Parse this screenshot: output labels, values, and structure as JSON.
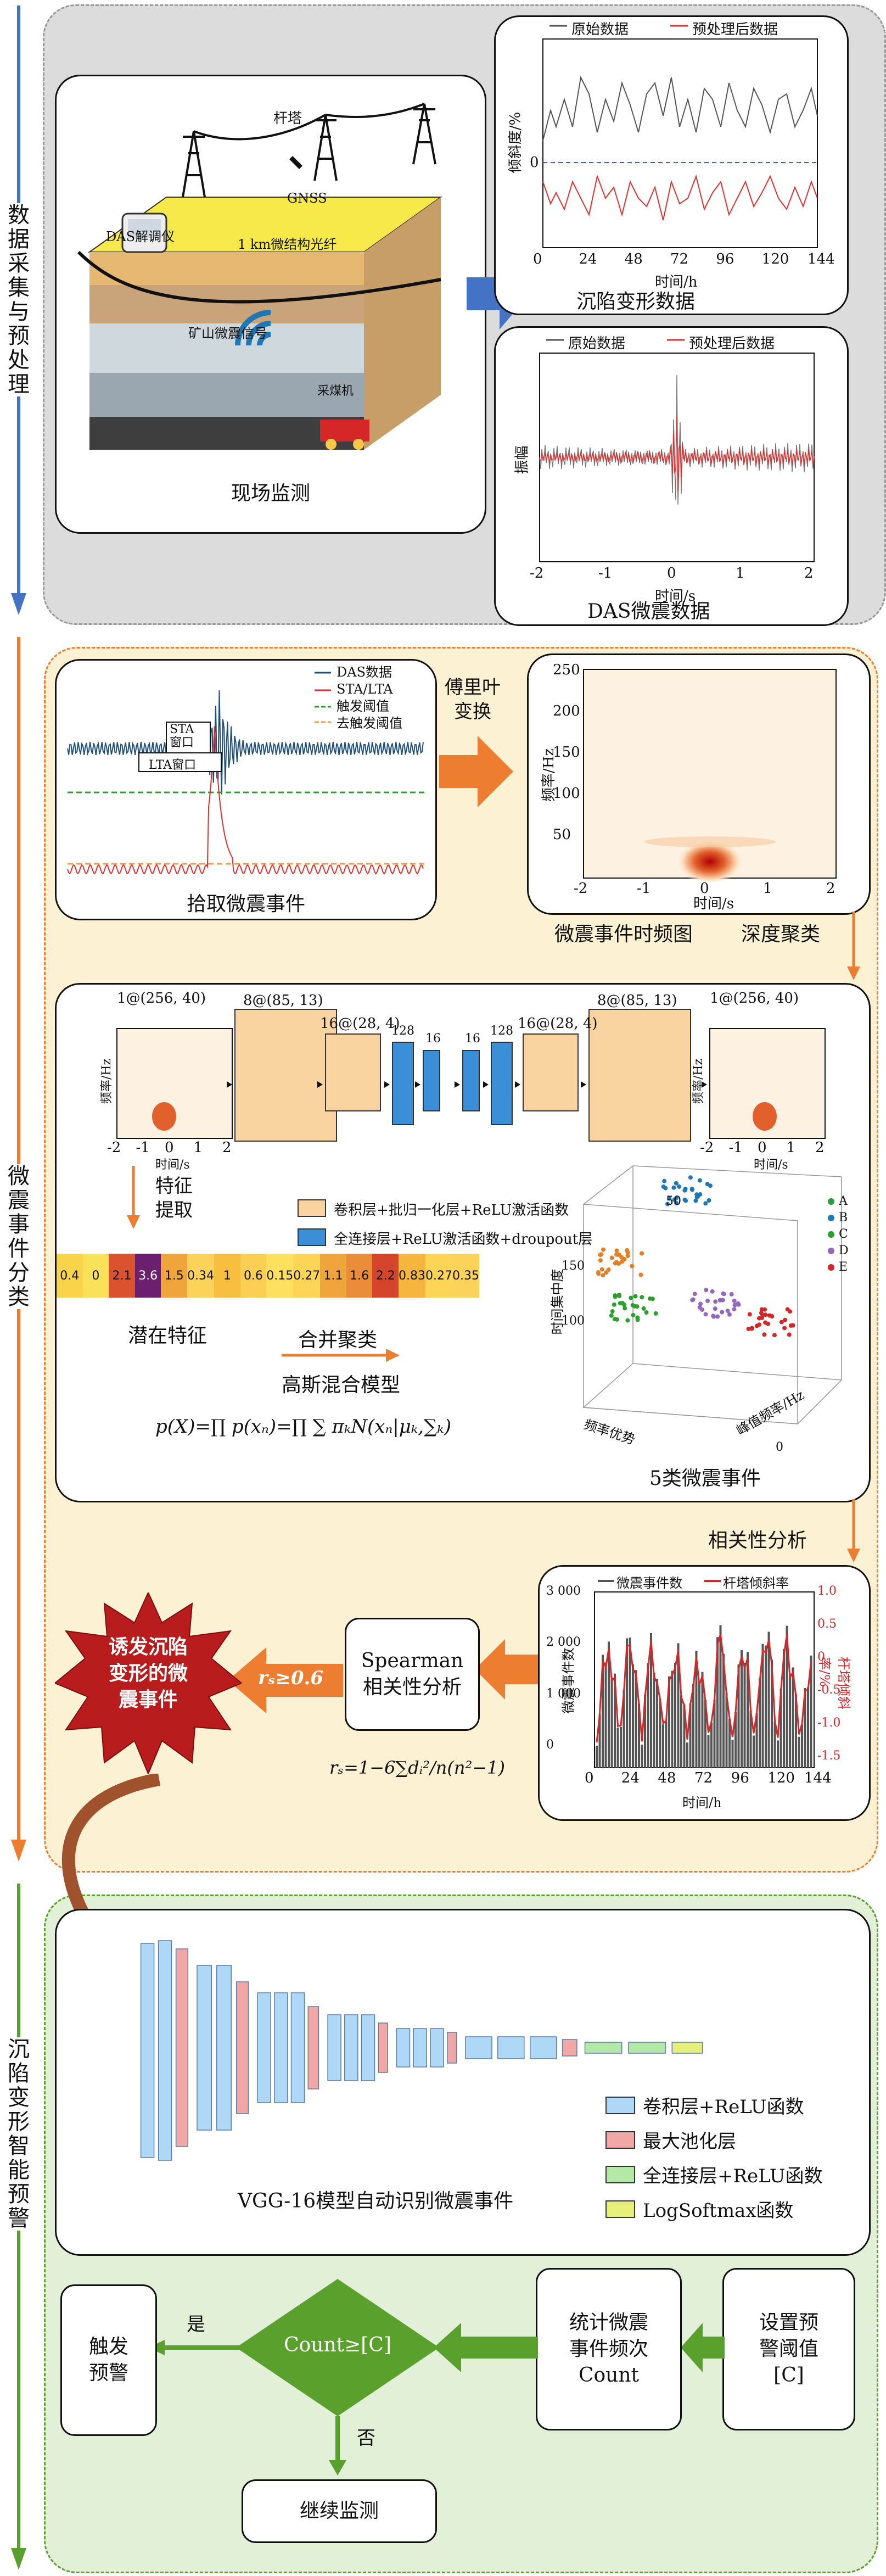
{
  "stages": {
    "s1": {
      "label": "数据采集与预处理",
      "color": "#4472c4"
    },
    "s2": {
      "label": "微震事件分类",
      "color": "#ed7d31"
    },
    "s3": {
      "label": "沉陷变形智能预警",
      "color": "#5aa02c"
    }
  },
  "scene": {
    "caption": "现场监测",
    "tower": "杆塔",
    "gnss": "GNSS",
    "das_unit": "DAS解调仪",
    "fiber": "1 km微结构光纤",
    "signal": "矿山微震信号",
    "miner": "采煤机"
  },
  "deform_chart": {
    "caption": "沉陷变形数据",
    "legend_raw": "原始数据",
    "legend_proc": "预处理后数据",
    "ylabel": "倾斜度/%",
    "xlabel": "时间/h",
    "y_tick_zero": "0",
    "x_ticks": [
      "0",
      "24",
      "48",
      "72",
      "96",
      "120",
      "144"
    ]
  },
  "das_chart": {
    "caption": "DAS微震数据",
    "legend_raw": "原始数据",
    "legend_proc": "预处理后数据",
    "ylabel": "振幅",
    "xlabel": "时间/s",
    "x_ticks": [
      "-2",
      "-1",
      "0",
      "1",
      "2"
    ]
  },
  "pick": {
    "caption": "拾取微震事件",
    "legend": [
      "DAS数据",
      "STA/LTA",
      "触发阈值",
      "去触发阈值"
    ],
    "sta": "STA\n窗口",
    "lta": "LTA窗口"
  },
  "fourier": {
    "label": "傅里叶\n变换"
  },
  "spec": {
    "caption": "微震事件时频图",
    "ylabel": "频率/Hz",
    "xlabel": "时间/s",
    "y_ticks": [
      "50",
      "100",
      "150",
      "200",
      "250"
    ],
    "x_ticks": [
      "-2",
      "-1",
      "0",
      "1",
      "2"
    ]
  },
  "deep_cluster": "深度聚类",
  "ae": {
    "in_label": "1@(256, 40)",
    "out_label": "1@(256, 40)",
    "layers": [
      "8@(85, 13)",
      "16@(28, 4)",
      "128",
      "16",
      "16",
      "128",
      "16@(28, 4)",
      "8@(85, 13)"
    ],
    "thumb_ylabel": "频率/Hz",
    "thumb_xlabel": "时间/s",
    "thumb_x_ticks": [
      "-2",
      "-1",
      "0",
      "1",
      "2"
    ],
    "legend_conv": "卷积层+批归一化层+ReLU激活函数",
    "legend_fc": "全连接层+ReLU激活函数+droupout层",
    "feature_extract": "特征\n提取",
    "latent_caption": "潜在特征",
    "latent_values": [
      "0.4",
      "0",
      "2.1",
      "3.6",
      "1.5",
      "0.34",
      "1",
      "0.6",
      "0.15",
      "0.27",
      "1.1",
      "1.6",
      "2.2",
      "0.83",
      "0.27",
      "0.35"
    ],
    "latent_colors": [
      "#f9d44a",
      "#f9e25a",
      "#d9532e",
      "#6d1f6f",
      "#f0a43c",
      "#fbd25a",
      "#f7be3f",
      "#fbce54",
      "#fde05e",
      "#fcd557",
      "#f0a43c",
      "#ea8c3a",
      "#d4452c",
      "#f5b53f",
      "#fcd557",
      "#fbd25a"
    ],
    "merge": "合并聚类",
    "gmm": "高斯混合模型",
    "formula": "p(X)=∏ p(xₙ)=∏ ∑ πₖN(xₙ|μₖ,∑ₖ)",
    "cluster_caption": "5类微震事件",
    "cluster_legend": [
      "A",
      "B",
      "C",
      "D",
      "E"
    ],
    "cluster_colors": [
      "#2a9d3f",
      "#1f77b4",
      "#2ca02c",
      "#9467bd",
      "#d62728"
    ],
    "axis_time": "时间集中度",
    "axis_freq": "频率优势",
    "axis_peak": "峰值频率/Hz",
    "tick_50": "50",
    "tick_100": "100",
    "tick_0": "0",
    "tick_150": "150"
  },
  "corr": {
    "label": "相关性分析",
    "chart_legend_a": "微震事件数",
    "chart_legend_b": "杆塔倾斜率",
    "ylabel_left": "微震事件数",
    "ylabel_right": "杆塔倾斜率/%",
    "xlabel": "时间/h",
    "y_left_ticks": [
      "0",
      "1 000",
      "2 000",
      "3 000"
    ],
    "y_right_ticks": [
      "-1.5",
      "-1.0",
      "-0.5",
      "0",
      "0.5",
      "1.0"
    ],
    "x_ticks": [
      "0",
      "24",
      "48",
      "72",
      "96",
      "120",
      "144"
    ],
    "spearman": "Spearman\n相关性分析",
    "rs": "rₛ≥0.6",
    "formula": "rₛ=1−6∑dᵢ²/n(n²−1)",
    "trigger_event": "诱发沉陷\n变形的微\n震事件"
  },
  "vgg": {
    "caption": "VGG-16模型自动识别微震事件",
    "legend": [
      "卷积层+ReLU函数",
      "最大池化层",
      "全连接层+ReLU函数",
      "LogSoftmax函数"
    ],
    "legend_colors": [
      "#aed8f5",
      "#f2a7a7",
      "#b3e8a6",
      "#e7f07a"
    ]
  },
  "alarm": {
    "threshold": "设置预\n警阈值\n[C]",
    "count": "统计微震\n事件频次\nCount",
    "decision": "Count≥[C]",
    "yes": "是",
    "no": "否",
    "trigger": "触发\n预警",
    "continue": "继续监测"
  }
}
